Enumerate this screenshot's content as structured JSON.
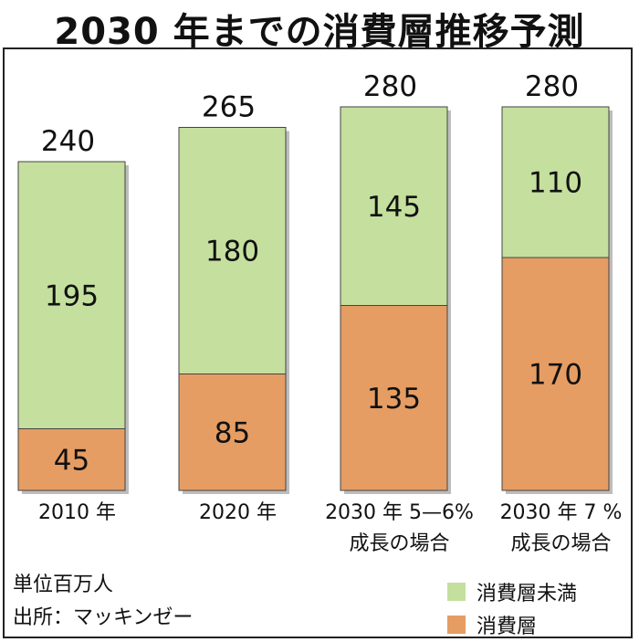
{
  "colors": {
    "under": "#c5df9e",
    "consumer": "#e59d63",
    "outline": "#444444"
  },
  "chart_data": {
    "type": "bar",
    "stacked": true,
    "title": "2030 年までの消費層推移予測",
    "categories": [
      [
        "2010 年"
      ],
      [
        "2020 年"
      ],
      [
        "2030 年 5—6%",
        "成長の場合"
      ],
      [
        "2030 年  7 %",
        "成長の場合"
      ]
    ],
    "totals": [
      240,
      265,
      280,
      280
    ],
    "series": [
      {
        "name": "消費層",
        "values": [
          45,
          85,
          135,
          170
        ]
      },
      {
        "name": "消費層未満",
        "values": [
          195,
          180,
          145,
          110
        ]
      }
    ],
    "unit_note": "単位百万人",
    "source_note": "出所：マッキンゼー",
    "ylim": [
      0,
      280
    ],
    "grid": false,
    "legend_position": "bottom-right"
  }
}
